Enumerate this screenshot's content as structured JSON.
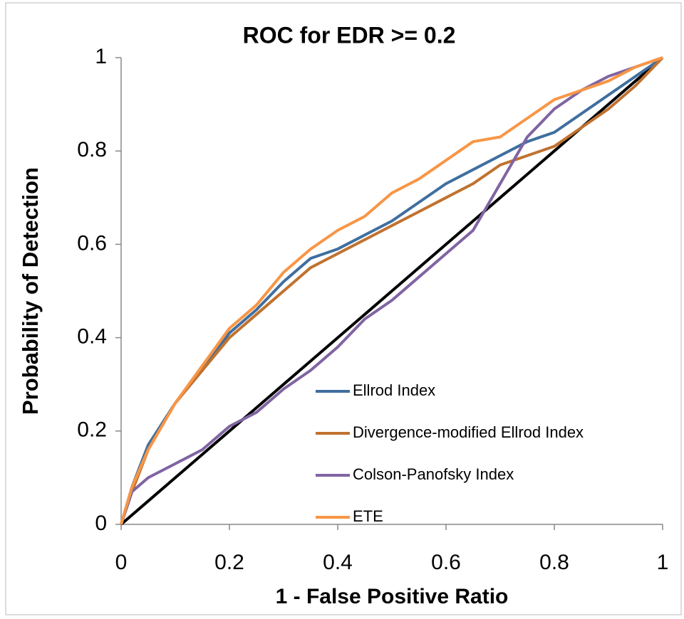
{
  "chart_data": {
    "type": "line",
    "title": "ROC for EDR >= 0.2",
    "x_label": "1 - False Positive Ratio",
    "y_label": "Probability of Detection",
    "x": [
      0,
      0.02,
      0.05,
      0.1,
      0.15,
      0.2,
      0.25,
      0.3,
      0.35,
      0.4,
      0.45,
      0.5,
      0.55,
      0.6,
      0.65,
      0.7,
      0.75,
      0.8,
      0.85,
      0.9,
      0.95,
      1
    ],
    "series": [
      {
        "color": "#000000",
        "values": [
          0,
          0.02,
          0.05,
          0.1,
          0.15,
          0.2,
          0.25,
          0.3,
          0.35,
          0.4,
          0.45,
          0.5,
          0.55,
          0.6,
          0.65,
          0.7,
          0.75,
          0.8,
          0.85,
          0.9,
          0.95,
          1
        ]
      },
      {
        "name": "Ellrod Index",
        "color": "#3f6f9f",
        "values": [
          0,
          0.08,
          0.17,
          0.26,
          0.33,
          0.41,
          0.46,
          0.52,
          0.57,
          0.59,
          0.62,
          0.65,
          0.69,
          0.73,
          0.76,
          0.79,
          0.82,
          0.84,
          0.88,
          0.92,
          0.96,
          1
        ]
      },
      {
        "name": "Divergence-modified Ellrod Index",
        "color": "#c0722f",
        "values": [
          0,
          0.07,
          0.16,
          0.26,
          0.33,
          0.4,
          0.45,
          0.5,
          0.55,
          0.58,
          0.61,
          0.64,
          0.67,
          0.7,
          0.73,
          0.77,
          0.79,
          0.81,
          0.85,
          0.89,
          0.94,
          1
        ]
      },
      {
        "name": "Colson-Panofsky Index",
        "color": "#8064a2",
        "values": [
          0,
          0.07,
          0.1,
          0.13,
          0.16,
          0.21,
          0.24,
          0.29,
          0.33,
          0.38,
          0.44,
          0.48,
          0.53,
          0.58,
          0.63,
          0.73,
          0.83,
          0.89,
          0.93,
          0.96,
          0.98,
          1
        ]
      },
      {
        "name": "ETE",
        "color": "#f79646",
        "values": [
          0,
          0.08,
          0.16,
          0.26,
          0.34,
          0.42,
          0.47,
          0.54,
          0.59,
          0.63,
          0.66,
          0.71,
          0.74,
          0.78,
          0.82,
          0.83,
          0.87,
          0.91,
          0.93,
          0.95,
          0.98,
          1
        ]
      }
    ],
    "xlim": [
      0,
      1
    ],
    "ylim": [
      0,
      1
    ],
    "xticks": [
      0,
      0.2,
      0.4,
      0.6,
      0.8,
      1
    ],
    "yticks": [
      0,
      0.2,
      0.4,
      0.6,
      0.8,
      1
    ],
    "grid": false,
    "legend": "lower-right"
  }
}
